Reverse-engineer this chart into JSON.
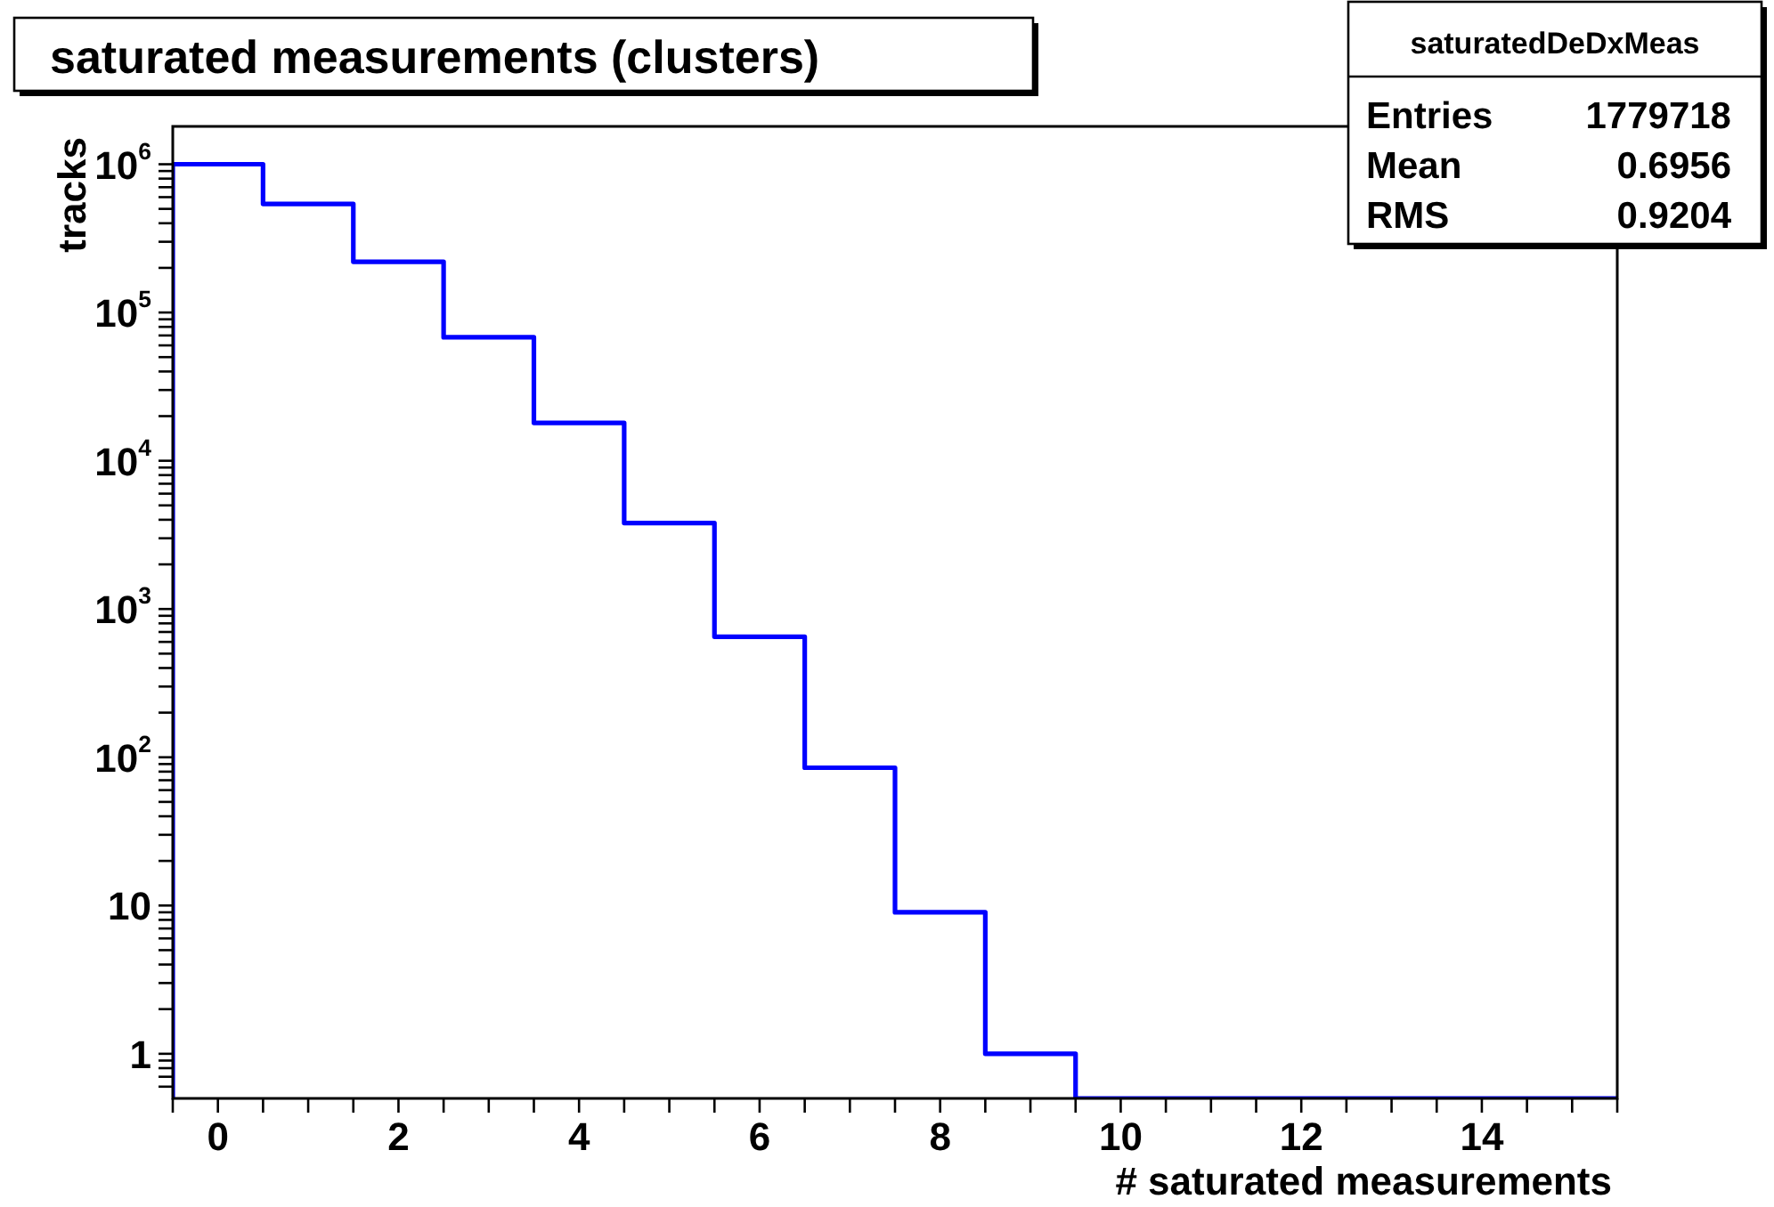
{
  "chart_data": {
    "type": "histogram",
    "title": "saturated measurements (clusters)",
    "xlabel": "# saturated measurements",
    "ylabel": "tracks",
    "bins": [
      -0.5,
      0.5,
      1.5,
      2.5,
      3.5,
      4.5,
      5.5,
      6.5,
      7.5,
      8.5,
      9.5,
      10.5,
      11.5,
      12.5,
      13.5,
      14.5,
      15.5
    ],
    "values": [
      1000000,
      540000,
      220000,
      68000,
      18000,
      3800,
      650,
      85,
      9,
      1,
      null,
      null,
      null,
      null,
      null,
      null
    ],
    "color": "#0000ff",
    "log": "y",
    "line_style": "solid",
    "xlim": [
      -0.5,
      15.5
    ],
    "ylim": [
      0.5,
      1800000
    ],
    "xticks": [
      {
        "value": -0.5,
        "label": null
      },
      0,
      {
        "value": 0.5,
        "label": null
      },
      {
        "value": 1,
        "label": null
      },
      {
        "value": 1.5,
        "label": null
      },
      2,
      {
        "value": 2.5,
        "label": null
      },
      {
        "value": 3,
        "label": null
      },
      {
        "value": 3.5,
        "label": null
      },
      4,
      {
        "value": 4.5,
        "label": null
      },
      {
        "value": 5,
        "label": null
      },
      {
        "value": 5.5,
        "label": null
      },
      6,
      {
        "value": 6.5,
        "label": null
      },
      {
        "value": 7,
        "label": null
      },
      {
        "value": 7.5,
        "label": null
      },
      8,
      {
        "value": 8.5,
        "label": null
      },
      {
        "value": 9,
        "label": null
      },
      {
        "value": 9.5,
        "label": null
      },
      10,
      {
        "value": 10.5,
        "label": null
      },
      {
        "value": 11,
        "label": null
      },
      {
        "value": 11.5,
        "label": null
      },
      12,
      {
        "value": 12.5,
        "label": null
      },
      {
        "value": 13,
        "label": null
      },
      {
        "value": 13.5,
        "label": null
      },
      14,
      {
        "value": 14.5,
        "label": null
      },
      {
        "value": 15,
        "label": null
      },
      {
        "value": 15.5,
        "label": null
      }
    ],
    "yticks": [
      {
        "value": 0.6,
        "label": null
      },
      {
        "value": 0.7,
        "label": null
      },
      {
        "value": 0.8,
        "label": null
      },
      {
        "value": 0.9,
        "label": null
      },
      1,
      {
        "value": 2,
        "label": null
      },
      {
        "value": 3,
        "label": null
      },
      {
        "value": 4,
        "label": null
      },
      {
        "value": 5,
        "label": null
      },
      {
        "value": 6,
        "label": null
      },
      {
        "value": 7,
        "label": null
      },
      {
        "value": 8,
        "label": null
      },
      {
        "value": 9,
        "label": null
      },
      10,
      {
        "value": 20,
        "label": null
      },
      {
        "value": 30,
        "label": null
      },
      {
        "value": 40,
        "label": null
      },
      {
        "value": 50,
        "label": null
      },
      {
        "value": 60,
        "label": null
      },
      {
        "value": 70,
        "label": null
      },
      {
        "value": 80,
        "label": null
      },
      {
        "value": 90,
        "label": null
      },
      {
        "value": 100,
        "label": "10$^{2}$"
      },
      {
        "value": 200,
        "label": null
      },
      {
        "value": 300,
        "label": null
      },
      {
        "value": 400,
        "label": null
      },
      {
        "value": 500,
        "label": null
      },
      {
        "value": 600,
        "label": null
      },
      {
        "value": 700,
        "label": null
      },
      {
        "value": 800,
        "label": null
      },
      {
        "value": 900,
        "label": null
      },
      {
        "value": 1000,
        "label": "10$^{3}$"
      },
      {
        "value": 2000,
        "label": null
      },
      {
        "value": 3000,
        "label": null
      },
      {
        "value": 4000,
        "label": null
      },
      {
        "value": 5000,
        "label": null
      },
      {
        "value": 6000,
        "label": null
      },
      {
        "value": 7000,
        "label": null
      },
      {
        "value": 8000,
        "label": null
      },
      {
        "value": 9000,
        "label": null
      },
      {
        "value": 10000,
        "label": "10$^{4}$"
      },
      {
        "value": 20000,
        "label": null
      },
      {
        "value": 30000,
        "label": null
      },
      {
        "value": 40000,
        "label": null
      },
      {
        "value": 50000,
        "label": null
      },
      {
        "value": 60000,
        "label": null
      },
      {
        "value": 70000,
        "label": null
      },
      {
        "value": 80000,
        "label": null
      },
      {
        "value": 90000,
        "label": null
      },
      {
        "value": 100000,
        "label": "10$^{5}$"
      },
      {
        "value": 200000,
        "label": null
      },
      {
        "value": 300000,
        "label": null
      },
      {
        "value": 400000,
        "label": null
      },
      {
        "value": 500000,
        "label": null
      },
      {
        "value": 600000,
        "label": null
      },
      {
        "value": 700000,
        "label": null
      },
      {
        "value": 800000,
        "label": null
      },
      {
        "value": 900000,
        "label": null
      },
      {
        "value": 1000000,
        "label": "10$^{6}$"
      }
    ],
    "annotations": [
      "saturatedDeDxMeas",
      "Entries",
      "1779718",
      "Mean",
      "0.6956",
      "RMS",
      "0.9204"
    ]
  }
}
